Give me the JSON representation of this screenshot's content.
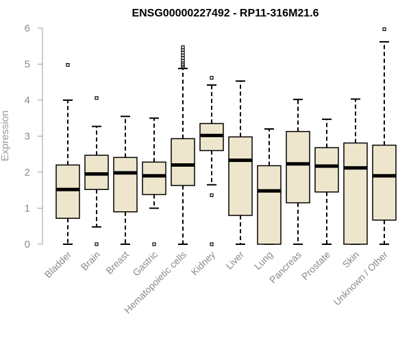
{
  "chart_data": {
    "type": "box",
    "title": "ENSG00000227492 - RP11-316M21.6",
    "xlabel": "",
    "ylabel": "Expression",
    "ylim": [
      0,
      6
    ],
    "yticks": [
      0,
      1,
      2,
      3,
      4,
      5,
      6
    ],
    "grid": false,
    "box_color": "#ede6cc",
    "categories": [
      "Bladder",
      "Brain",
      "Breast",
      "Gastric",
      "Hematopoietic cells",
      "Kidney",
      "Liver",
      "Lung",
      "Pancreas",
      "Prostate",
      "Skin",
      "Unknown / Other"
    ],
    "boxes": [
      {
        "min": 0.0,
        "q1": 0.72,
        "median": 1.52,
        "q3": 2.2,
        "max": 4.0,
        "outliers": [
          4.98
        ]
      },
      {
        "min": 0.48,
        "q1": 1.52,
        "median": 1.95,
        "q3": 2.47,
        "max": 3.27,
        "outliers": [
          4.06,
          0.0
        ]
      },
      {
        "min": 0.0,
        "q1": 0.9,
        "median": 1.98,
        "q3": 2.41,
        "max": 3.55,
        "outliers": []
      },
      {
        "min": 1.0,
        "q1": 1.38,
        "median": 1.9,
        "q3": 2.28,
        "max": 3.5,
        "outliers": [
          0.0
        ]
      },
      {
        "min": 0.0,
        "q1": 1.63,
        "median": 2.2,
        "q3": 2.93,
        "max": 4.88,
        "outliers": [
          4.92,
          4.96,
          5.0,
          5.05,
          5.1,
          5.17,
          5.25,
          5.32,
          5.4,
          5.47
        ]
      },
      {
        "min": 1.65,
        "q1": 2.6,
        "median": 3.02,
        "q3": 3.35,
        "max": 4.42,
        "outliers": [
          4.62,
          1.36,
          0.0
        ]
      },
      {
        "min": 0.0,
        "q1": 0.8,
        "median": 2.33,
        "q3": 2.98,
        "max": 4.53,
        "outliers": []
      },
      {
        "min": 0.0,
        "q1": 0.0,
        "median": 1.48,
        "q3": 2.18,
        "max": 3.2,
        "outliers": []
      },
      {
        "min": 0.0,
        "q1": 1.15,
        "median": 2.23,
        "q3": 3.13,
        "max": 4.02,
        "outliers": []
      },
      {
        "min": 0.0,
        "q1": 1.45,
        "median": 2.17,
        "q3": 2.68,
        "max": 3.47,
        "outliers": []
      },
      {
        "min": 0.0,
        "q1": 0.0,
        "median": 2.12,
        "q3": 2.81,
        "max": 4.03,
        "outliers": []
      },
      {
        "min": 0.0,
        "q1": 0.67,
        "median": 1.9,
        "q3": 2.75,
        "max": 5.62,
        "outliers": [
          5.97
        ]
      }
    ]
  }
}
